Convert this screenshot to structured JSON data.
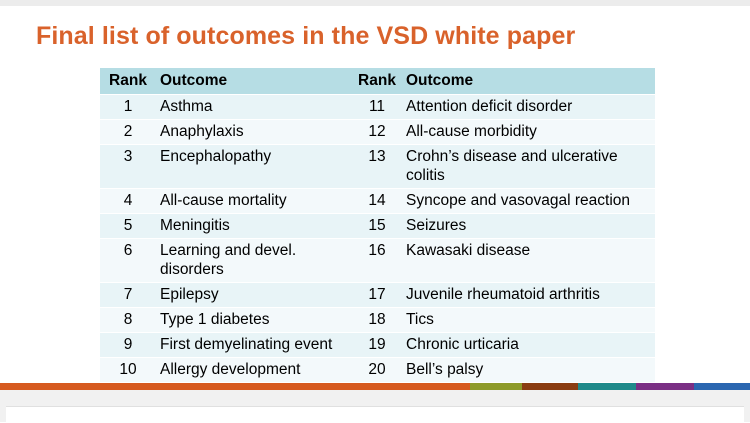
{
  "title": "Final list of outcomes in the VSD white paper",
  "table": {
    "headers": [
      "Rank",
      "Outcome",
      "Rank",
      "Outcome"
    ],
    "rows": [
      {
        "rank1": "1",
        "outcome1": "Asthma",
        "rank2": "11",
        "outcome2": "Attention deficit disorder"
      },
      {
        "rank1": "2",
        "outcome1": "Anaphylaxis",
        "rank2": "12",
        "outcome2": "All-cause morbidity"
      },
      {
        "rank1": "3",
        "outcome1": "Encephalopathy",
        "rank2": "13",
        "outcome2": "Crohn’s disease and ulcerative colitis"
      },
      {
        "rank1": "4",
        "outcome1": "All-cause mortality",
        "rank2": "14",
        "outcome2": "Syncope and vasovagal reaction"
      },
      {
        "rank1": "5",
        "outcome1": "Meningitis",
        "rank2": "15",
        "outcome2": "Seizures"
      },
      {
        "rank1": "6",
        "outcome1": "Learning and devel. disorders",
        "rank2": "16",
        "outcome2": "Kawasaki disease"
      },
      {
        "rank1": "7",
        "outcome1": "Epilepsy",
        "rank2": "17",
        "outcome2": "Juvenile rheumatoid arthritis"
      },
      {
        "rank1": "8",
        "outcome1": "Type 1 diabetes",
        "rank2": "18",
        "outcome2": "Tics"
      },
      {
        "rank1": "9",
        "outcome1": "First demyelinating event",
        "rank2": "19",
        "outcome2": "Chronic urticaria"
      },
      {
        "rank1": "10",
        "outcome1": "Allergy development",
        "rank2": "20",
        "outcome2": "Bell’s palsy"
      }
    ]
  },
  "colors": {
    "title": "#d9622b",
    "header_fill": "#b6dde4",
    "row_fill_a": "#e8f4f7",
    "row_fill_b": "#f3f9fb",
    "bar": [
      "#d65a1f",
      "#8e9b2a",
      "#8a3d12",
      "#1f8a8a",
      "#7a2f84",
      "#2a66b0"
    ]
  }
}
